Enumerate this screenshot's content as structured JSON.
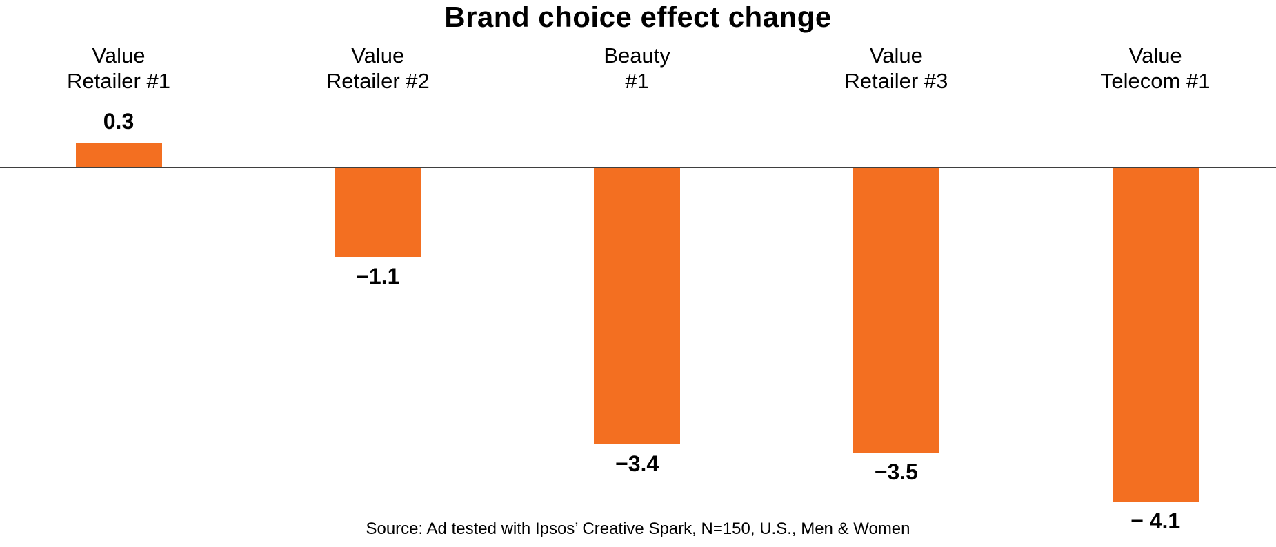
{
  "chart_data": {
    "type": "bar",
    "title": "Brand choice effect change",
    "categories": [
      "Value\nRetailer #1",
      "Value\nRetailer #2",
      "Beauty\n#1",
      "Value\nRetailer #3",
      "Value\nTelecom #1"
    ],
    "values": [
      0.3,
      -1.1,
      -3.4,
      -3.5,
      -4.1
    ],
    "value_labels": [
      "0.3",
      "−1.1",
      "−3.4",
      "−3.5",
      "− 4.1"
    ],
    "series_name": "Brand choice effect change",
    "xlabel": "",
    "ylabel": "",
    "ylim": [
      -4.7,
      2.1
    ],
    "axis_visible": false,
    "grid": false,
    "legend": false,
    "zero_line": true,
    "bar_color": "#F36F21",
    "zero_line_color": "#3F3F3F",
    "text_color": "#000000",
    "source": "Source: Ad tested with Ipsos’ Creative Spark, N=150, U.S., Men & Women"
  }
}
